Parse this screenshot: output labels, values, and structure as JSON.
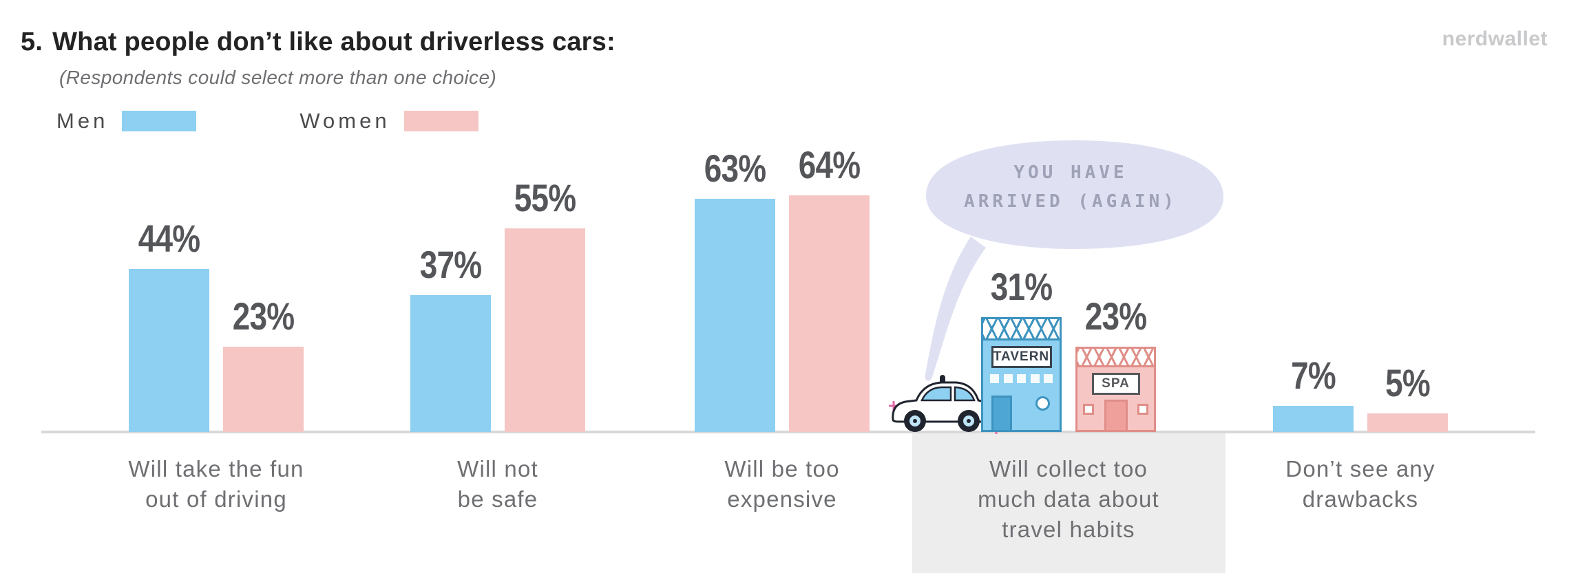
{
  "brand": {
    "name": "nerdwallet"
  },
  "header": {
    "number": "5.",
    "title": "What people don’t like about driverless cars:",
    "subtitle": "(Respondents could select more than one choice)"
  },
  "legend": {
    "men_label": "Men",
    "women_label": "Women"
  },
  "colors": {
    "men": "#8DD0F1",
    "women": "#F6C6C4",
    "men_dark": "#3D93BF",
    "women_dark": "#E08E88",
    "value_label": "#55565A",
    "category_label": "#6E6F72",
    "baseline": "#D8D8D8",
    "highlight_box": "#EDEDED",
    "bubble": "#DFE1F3",
    "bubble_text": "#9FA2B6"
  },
  "chart_data": {
    "type": "bar",
    "title": "What people don’t like about driverless cars",
    "subtitle": "(Respondents could select more than one choice)",
    "value_suffix": "%",
    "categories": [
      [
        "Will take the fun",
        "out of driving"
      ],
      [
        "Will not",
        "be safe"
      ],
      [
        "Will be too",
        "expensive"
      ],
      [
        "Will collect too",
        "much data about",
        "travel habits"
      ],
      [
        "Don’t see any",
        "drawbacks"
      ]
    ],
    "series": [
      {
        "name": "Men",
        "values": [
          44,
          37,
          63,
          31,
          7
        ]
      },
      {
        "name": "Women",
        "values": [
          23,
          55,
          64,
          23,
          5
        ]
      }
    ],
    "highlighted_category_index": 3,
    "legend_position": "top-left",
    "ylim": [
      0,
      70
    ],
    "grid": false,
    "value_labels_shown": true
  },
  "illustration": {
    "speech_bubble": [
      "YOU HAVE",
      "ARRIVED (AGAIN)"
    ],
    "tavern_sign": "TAVERN",
    "spa_sign": "SPA"
  }
}
